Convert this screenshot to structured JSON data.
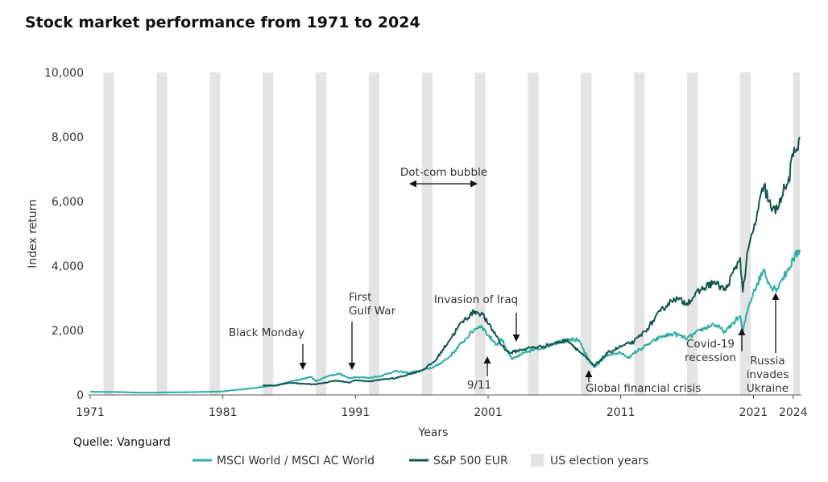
{
  "chart_data": {
    "type": "line",
    "title": "Stock market performance from 1971 to 2024",
    "xlabel": "Years",
    "ylabel": "Index return",
    "xlim": [
      1971,
      2024.5
    ],
    "ylim": [
      0,
      10000
    ],
    "x_ticks": [
      1971,
      1981,
      1991,
      2001,
      2011,
      2021,
      2024
    ],
    "y_ticks": [
      0,
      2000,
      4000,
      6000,
      8000,
      10000
    ],
    "y_tick_labels": [
      "0",
      "2,000",
      "4,000",
      "6,000",
      "8,000",
      "10,000"
    ],
    "election_years": [
      1972,
      1976,
      1980,
      1984,
      1988,
      1992,
      1996,
      2000,
      2004,
      2008,
      2012,
      2016,
      2020,
      2024
    ],
    "series": [
      {
        "name": "MSCI World / MSCI AC World",
        "color": "#2aaea0",
        "points": [
          [
            1971,
            100
          ],
          [
            1973,
            90
          ],
          [
            1975,
            70
          ],
          [
            1977,
            80
          ],
          [
            1979,
            90
          ],
          [
            1981,
            110
          ],
          [
            1983,
            200
          ],
          [
            1985,
            300
          ],
          [
            1986.5,
            450
          ],
          [
            1987.7,
            560
          ],
          [
            1988,
            420
          ],
          [
            1989,
            600
          ],
          [
            1989.8,
            660
          ],
          [
            1990.5,
            520
          ],
          [
            1991,
            560
          ],
          [
            1992,
            530
          ],
          [
            1993,
            600
          ],
          [
            1994,
            740
          ],
          [
            1995,
            680
          ],
          [
            1996,
            760
          ],
          [
            1997,
            880
          ],
          [
            1998,
            1150
          ],
          [
            1999,
            1600
          ],
          [
            2000,
            2050
          ],
          [
            2000.5,
            2150
          ],
          [
            2001,
            1850
          ],
          [
            2001.7,
            1550
          ],
          [
            2002,
            1750
          ],
          [
            2002.8,
            1100
          ],
          [
            2003.5,
            1250
          ],
          [
            2004,
            1350
          ],
          [
            2005,
            1450
          ],
          [
            2006,
            1600
          ],
          [
            2007,
            1750
          ],
          [
            2007.8,
            1700
          ],
          [
            2008.5,
            1150
          ],
          [
            2009,
            850
          ],
          [
            2009.5,
            1050
          ],
          [
            2010,
            1250
          ],
          [
            2011,
            1300
          ],
          [
            2011.7,
            1150
          ],
          [
            2012,
            1300
          ],
          [
            2013,
            1550
          ],
          [
            2014,
            1800
          ],
          [
            2015,
            1900
          ],
          [
            2016,
            1750
          ],
          [
            2017,
            2000
          ],
          [
            2018,
            2200
          ],
          [
            2018.9,
            1950
          ],
          [
            2019.5,
            2250
          ],
          [
            2020,
            2450
          ],
          [
            2020.2,
            1950
          ],
          [
            2020.6,
            2700
          ],
          [
            2021,
            3200
          ],
          [
            2021.8,
            3900
          ],
          [
            2022.3,
            3350
          ],
          [
            2022.8,
            3300
          ],
          [
            2023,
            3500
          ],
          [
            2023.5,
            3800
          ],
          [
            2024,
            4200
          ],
          [
            2024.5,
            4500
          ]
        ]
      },
      {
        "name": "S&P 500 EUR",
        "color": "#11574f",
        "points": [
          [
            1984,
            300
          ],
          [
            1985,
            290
          ],
          [
            1986,
            380
          ],
          [
            1987,
            350
          ],
          [
            1987.8,
            330
          ],
          [
            1988.5,
            360
          ],
          [
            1989.5,
            450
          ],
          [
            1990.5,
            380
          ],
          [
            1991,
            460
          ],
          [
            1992,
            420
          ],
          [
            1993,
            480
          ],
          [
            1994,
            520
          ],
          [
            1995,
            640
          ],
          [
            1996,
            760
          ],
          [
            1997,
            1050
          ],
          [
            1998,
            1650
          ],
          [
            1999,
            2250
          ],
          [
            2000,
            2600
          ],
          [
            2000.6,
            2500
          ],
          [
            2001,
            2200
          ],
          [
            2001.7,
            1800
          ],
          [
            2002,
            1550
          ],
          [
            2002.6,
            1300
          ],
          [
            2003.5,
            1400
          ],
          [
            2004,
            1450
          ],
          [
            2005,
            1500
          ],
          [
            2006,
            1600
          ],
          [
            2007,
            1700
          ],
          [
            2008.5,
            1100
          ],
          [
            2009,
            900
          ],
          [
            2009.5,
            1100
          ],
          [
            2010,
            1300
          ],
          [
            2011,
            1500
          ],
          [
            2012,
            1650
          ],
          [
            2013,
            2050
          ],
          [
            2014,
            2600
          ],
          [
            2015,
            3000
          ],
          [
            2016,
            2850
          ],
          [
            2017,
            3250
          ],
          [
            2018,
            3500
          ],
          [
            2018.9,
            3250
          ],
          [
            2019.6,
            3900
          ],
          [
            2020,
            4250
          ],
          [
            2020.2,
            3200
          ],
          [
            2020.6,
            4500
          ],
          [
            2021,
            5100
          ],
          [
            2021.8,
            6500
          ],
          [
            2022.4,
            5700
          ],
          [
            2022.8,
            5750
          ],
          [
            2023,
            6100
          ],
          [
            2023.6,
            6550
          ],
          [
            2024,
            7400
          ],
          [
            2024.5,
            8000
          ]
        ]
      }
    ],
    "legend": [
      {
        "label": "MSCI World / MSCI AC World",
        "kind": "line",
        "color": "#2aaea0"
      },
      {
        "label": "S&P 500 EUR",
        "kind": "line",
        "color": "#11574f"
      },
      {
        "label": "US election years",
        "kind": "box",
        "color": "#e3e3e3"
      }
    ],
    "legend_position": "bottom",
    "annotations": [
      {
        "key": "black-monday",
        "lines": [
          "Black Monday"
        ],
        "x": 1987,
        "arrow": "down"
      },
      {
        "key": "gulf-war",
        "lines": [
          "First",
          "Gulf War"
        ],
        "x": 1991,
        "arrow": "down"
      },
      {
        "key": "dot-com",
        "lines": [
          "Dot-com bubble"
        ],
        "x_range": [
          1995.5,
          2000
        ],
        "arrow": "both"
      },
      {
        "key": "iraq",
        "lines": [
          "Invasion of Iraq"
        ],
        "x": 2003,
        "arrow": "down"
      },
      {
        "key": "nine-eleven",
        "lines": [
          "9/11"
        ],
        "x": 2001.2,
        "arrow": "up"
      },
      {
        "key": "gfc",
        "lines": [
          "Global financial crisis"
        ],
        "x": 2009,
        "arrow": "up"
      },
      {
        "key": "covid",
        "lines": [
          "Covid-19",
          "recession"
        ],
        "x": 2020.3,
        "arrow": "up"
      },
      {
        "key": "russia",
        "lines": [
          "Russia",
          "invades",
          "Ukraine"
        ],
        "x": 2022.7,
        "arrow": "up"
      }
    ],
    "source": "Quelle: Vanguard"
  }
}
